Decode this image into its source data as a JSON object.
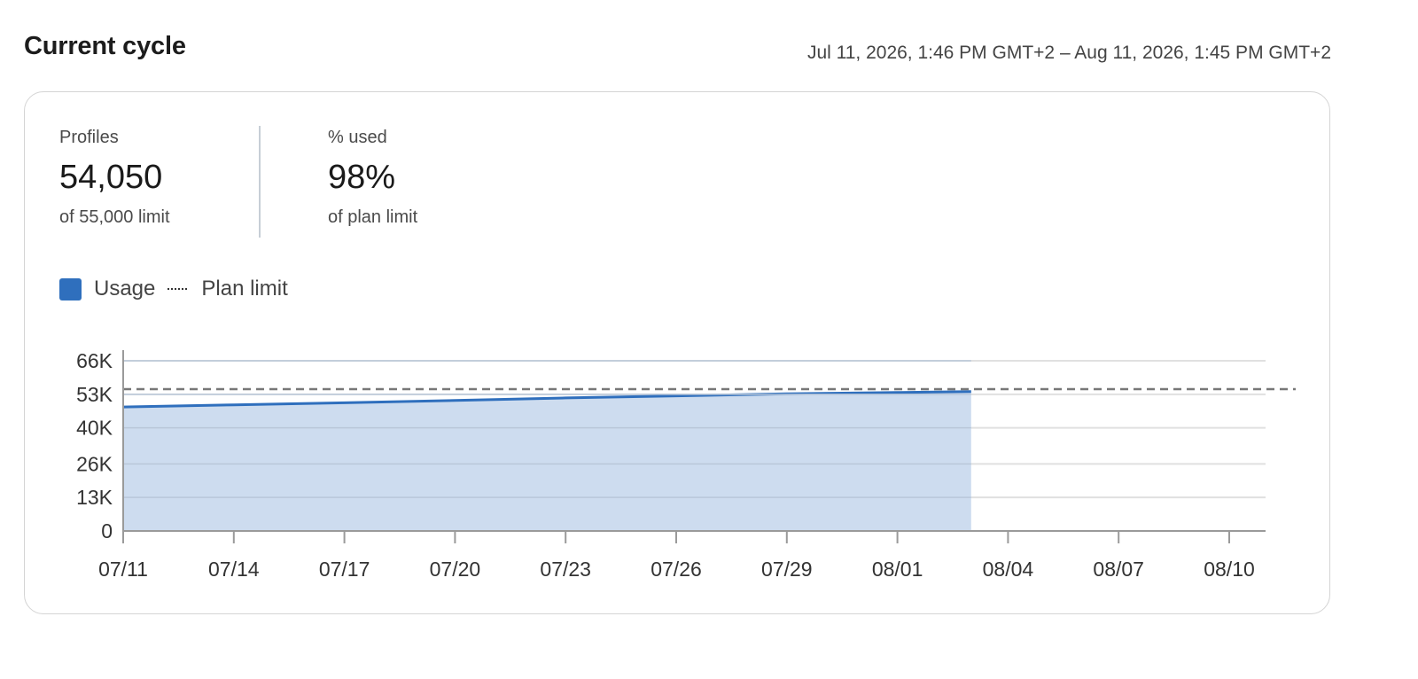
{
  "header": {
    "title": "Current cycle",
    "cycle_range": "Jul 11, 2026, 1:46 PM GMT+2 – Aug 11, 2026, 1:45 PM GMT+2"
  },
  "stats": {
    "profiles": {
      "label": "Profiles",
      "value": "54,050",
      "sub": "of 55,000 limit"
    },
    "used": {
      "label": "% used",
      "value": "98%",
      "sub": "of plan limit"
    }
  },
  "legend": {
    "usage": "Usage",
    "limit": "Plan limit"
  },
  "colors": {
    "usage_line": "#2f6fbd",
    "usage_fill": "#cddcef",
    "limit_line": "#777777",
    "grid": "#e0e0e0",
    "axis": "#9a9a9a"
  },
  "chart_data": {
    "type": "area",
    "ylim": [
      0,
      66000
    ],
    "y_ticks": [
      0,
      13000,
      26000,
      40000,
      53000,
      66000
    ],
    "y_tick_labels": [
      "0",
      "13K",
      "26K",
      "40K",
      "53K",
      "66K"
    ],
    "x_ticks": [
      "07/11",
      "07/14",
      "07/17",
      "07/20",
      "07/23",
      "07/26",
      "07/29",
      "08/01",
      "08/04",
      "08/07",
      "08/10"
    ],
    "series": [
      {
        "name": "Usage",
        "x": [
          "07/11",
          "07/14",
          "07/17",
          "07/20",
          "07/23",
          "07/26",
          "07/29",
          "08/01",
          "08/03"
        ],
        "values": [
          48100,
          48900,
          49700,
          50600,
          51600,
          52400,
          53200,
          53700,
          54050
        ]
      }
    ],
    "plan_limit": 55000,
    "grid": true,
    "legend_position": "top-left"
  }
}
